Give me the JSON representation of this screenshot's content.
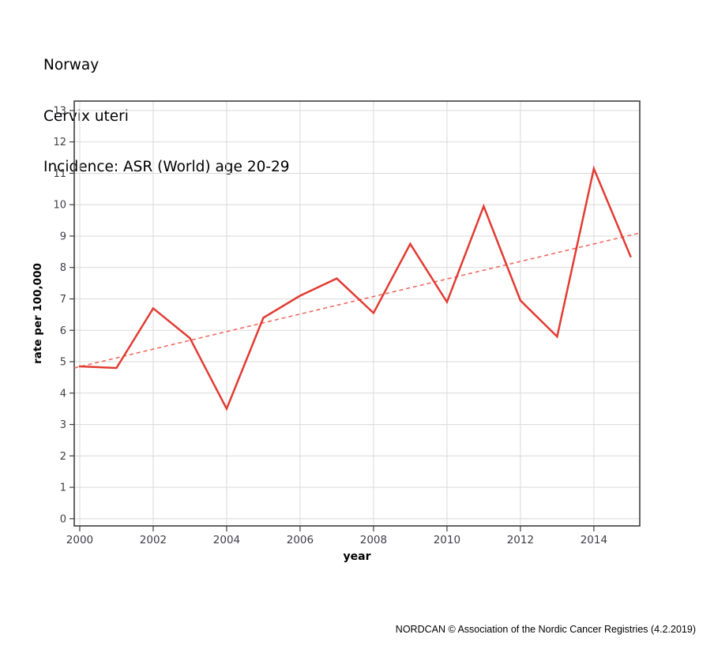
{
  "title_lines": [
    "Norway",
    "Cervix uteri",
    "Incidence: ASR (World) age 20-29"
  ],
  "footer": "NORDCAN © Association of the Nordic Cancer Registries (4.2.2019)",
  "colors": {
    "line": "#e23b32",
    "trend": "#ee6a61",
    "grid": "#d9d9d9",
    "border": "#3f3f3f",
    "tick_text": "#3d3d47",
    "axis_title_text": "#000000"
  },
  "chart_data": {
    "type": "line",
    "title": "Norway — Cervix uteri — Incidence: ASR (World) age 20-29",
    "xlabel": "year",
    "ylabel": "rate per 100,000",
    "x": [
      2000,
      2001,
      2002,
      2003,
      2004,
      2005,
      2006,
      2007,
      2008,
      2009,
      2010,
      2011,
      2012,
      2013,
      2014,
      2015
    ],
    "series": [
      {
        "name": "incidence-rate",
        "style": "solid",
        "values": [
          4.85,
          4.8,
          6.7,
          5.75,
          3.5,
          6.4,
          7.1,
          7.65,
          6.55,
          8.75,
          6.9,
          9.95,
          6.95,
          5.8,
          11.15,
          8.35
        ]
      },
      {
        "name": "trend-line",
        "style": "dashed",
        "x": [
          1999.85,
          2015.25
        ],
        "values": [
          4.8,
          9.1
        ]
      }
    ],
    "xlim": [
      1999.85,
      2015.25
    ],
    "ylim": [
      -0.23,
      13.3
    ],
    "xticks": [
      2000,
      2002,
      2004,
      2006,
      2008,
      2010,
      2012,
      2014
    ],
    "yticks": [
      0,
      1,
      2,
      3,
      4,
      5,
      6,
      7,
      8,
      9,
      10,
      11,
      12,
      13
    ],
    "grid": true,
    "legend": "none"
  }
}
